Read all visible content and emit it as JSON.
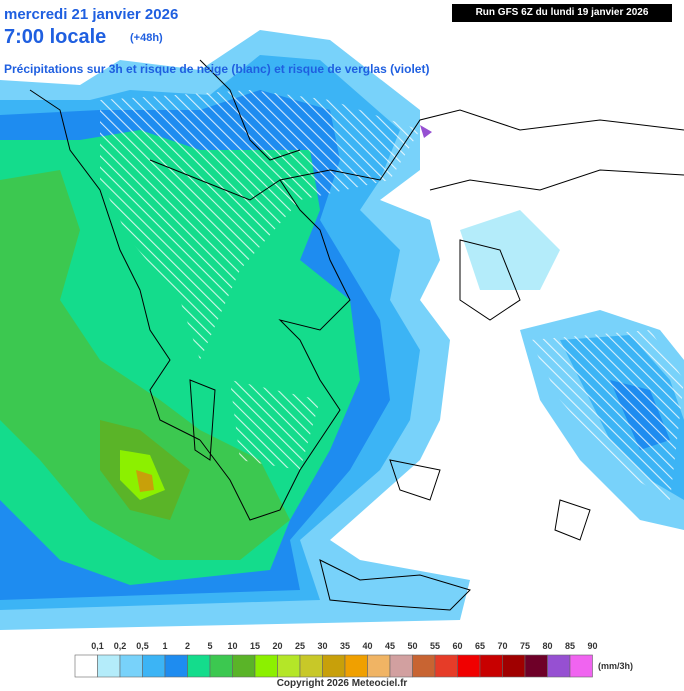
{
  "header": {
    "date": "mercredi 21 janvier 2026",
    "time": "7:00 locale",
    "lead": "(+48h)",
    "description": "Précipitations sur 3h et risque de neige (blanc) et risque de verglas (violet)",
    "run": "Run GFS 6Z du lundi 19 janvier 2026"
  },
  "legend": {
    "labels": [
      "0,1",
      "0,2",
      "0,5",
      "1",
      "2",
      "5",
      "10",
      "15",
      "20",
      "25",
      "30",
      "35",
      "40",
      "45",
      "50",
      "55",
      "60",
      "65",
      "70",
      "75",
      "80",
      "85",
      "90"
    ],
    "colors": [
      "#ffffff",
      "#b4ecfa",
      "#78d2fa",
      "#3cb4f5",
      "#1e8cf0",
      "#14dc8c",
      "#3cc850",
      "#5ab428",
      "#8cf000",
      "#b4e628",
      "#c8c828",
      "#c8a00a",
      "#f0a000",
      "#f0b464",
      "#d2a0a0",
      "#c86432",
      "#e63c28",
      "#f00000",
      "#c80000",
      "#a00000",
      "#6e0028",
      "#9650d2",
      "#f064f0"
    ],
    "unit": "(mm/3h)"
  },
  "footer": {
    "copyright": "Copyright 2026 Meteociel.fr"
  }
}
